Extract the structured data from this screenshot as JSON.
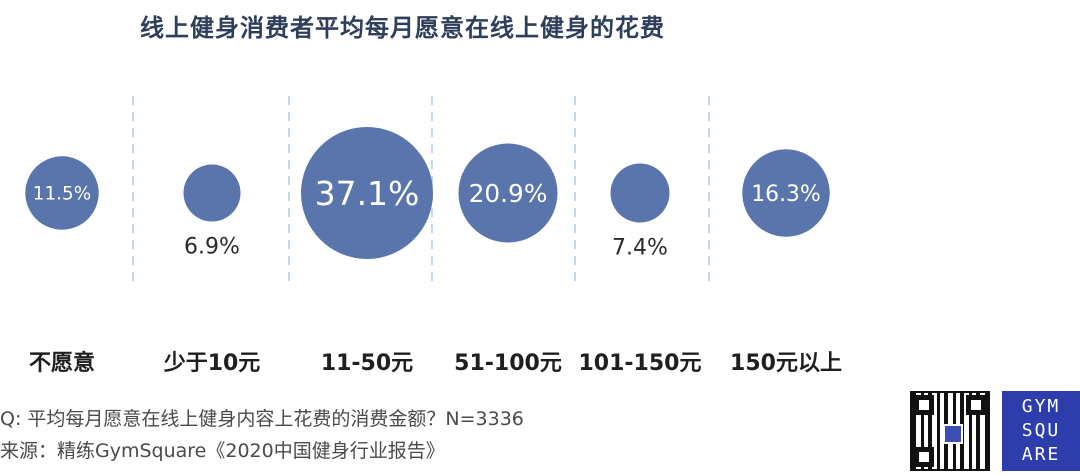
{
  "chart_data": {
    "type": "bubble",
    "title": "线上健身消费者平均每月愿意在线上健身的花费",
    "categories": [
      "不愿意",
      "少于10元",
      "11-50元",
      "51-100元",
      "101-150元",
      "150元以上"
    ],
    "values": [
      11.5,
      6.9,
      37.1,
      20.9,
      7.4,
      16.3
    ],
    "data_labels": [
      "11.5%",
      "6.9%",
      "37.1%",
      "20.9%",
      "7.4%",
      "16.3%"
    ],
    "unit": "%",
    "bubble_color": "#5a75ab",
    "divider_color": "#c9d6e6"
  },
  "footer": {
    "question": "Q: 平均每月愿意在线上健身内容上花费的消费金额？N=3336",
    "source": "来源：精练GymSquare《2020中国健身行业报告》"
  },
  "logo": {
    "line1": "GYM",
    "line2": "SQU",
    "line3": "ARE"
  }
}
